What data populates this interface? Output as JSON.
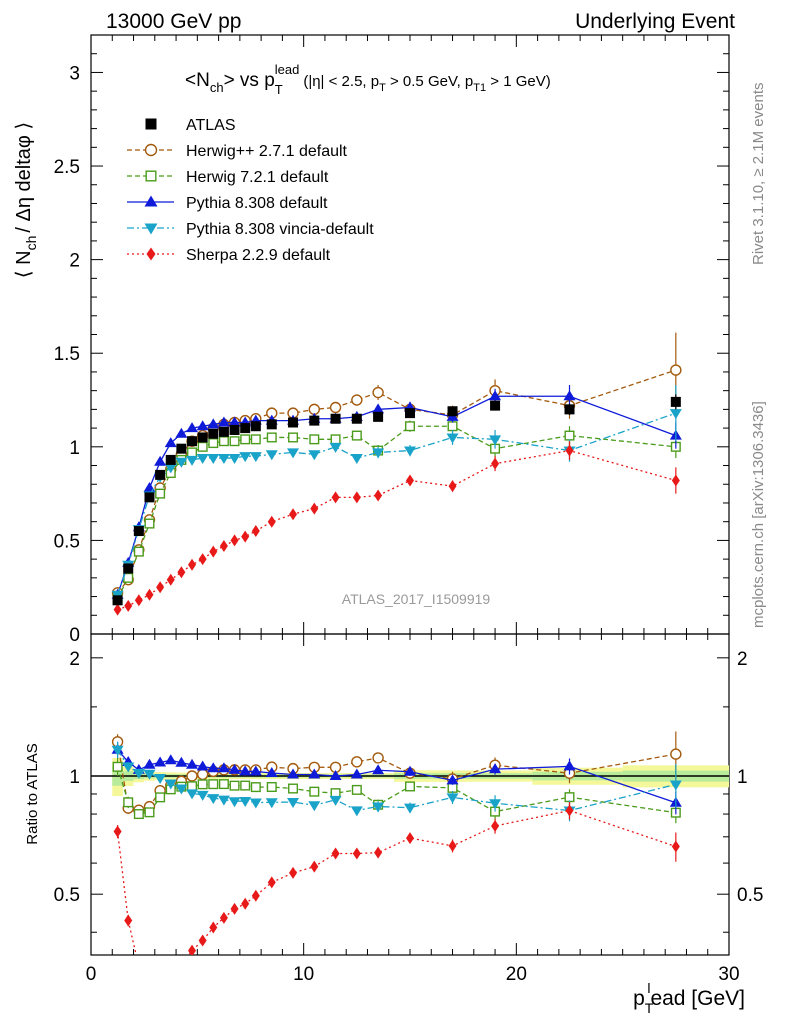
{
  "header": {
    "left": "13000 GeV pp",
    "right": "Underlying Event"
  },
  "side_labels": {
    "rivet": "Rivet 3.1.10, ≥ 2.1M events",
    "mcplots": "mcplots.cern.ch [arXiv:1306.3436]"
  },
  "chart_data": {
    "type": "line",
    "title_main": "<N",
    "title_main_sub": "ch",
    "title_vs": "> vs p",
    "title_vs_sup": "lead",
    "title_vs_sub": "T",
    "title_cuts": "(|η| < 2.5, p",
    "title_cuts_sub1": "T",
    "title_cuts_mid": " > 0.5 GeV, p",
    "title_cuts_sub2": "T1",
    "title_cuts_end": " > 1 GeV)",
    "watermark": "ATLAS_2017_I1509919",
    "ylabel_main": {
      "pre": "⟨ N",
      "sub": "ch",
      "post": "/ Δη deltaφ ⟩"
    },
    "ylabel_ratio": "Ratio to ATLAS",
    "xlabel": {
      "pre": "p",
      "sub": "T",
      "sup": "l",
      "post": "ead [GeV]"
    },
    "xlim": [
      0,
      30
    ],
    "ylim_main": [
      0,
      3.2
    ],
    "ylim_ratio": [
      0.35,
      2.3
    ],
    "xticks": [
      0,
      10,
      20,
      30
    ],
    "xtick_labels": [
      "0",
      "10",
      "20",
      "30"
    ],
    "yticks_main": [
      0,
      0.5,
      1,
      1.5,
      2,
      2.5,
      3
    ],
    "ytick_labels_main": [
      "0",
      "0.5",
      "1",
      "1.5",
      "2",
      "2.5",
      "3"
    ],
    "yticks_ratio": [
      0.5,
      1,
      2
    ],
    "ytick_labels_ratio": [
      "0.5",
      "1",
      "2"
    ],
    "x": [
      1.25,
      1.75,
      2.25,
      2.75,
      3.25,
      3.75,
      4.25,
      4.75,
      5.25,
      5.75,
      6.25,
      6.75,
      7.25,
      7.75,
      8.5,
      9.5,
      10.5,
      11.5,
      12.5,
      13.5,
      15.0,
      17.0,
      19.0,
      22.5,
      27.5
    ],
    "series": [
      {
        "name": "ATLAS",
        "color": "#000000",
        "marker": "square-filled",
        "line": "none",
        "values": [
          0.18,
          0.35,
          0.55,
          0.73,
          0.85,
          0.93,
          0.99,
          1.03,
          1.05,
          1.07,
          1.08,
          1.09,
          1.1,
          1.11,
          1.12,
          1.13,
          1.14,
          1.15,
          1.15,
          1.16,
          1.18,
          1.19,
          1.22,
          1.2,
          1.24
        ],
        "errors": [
          0.01,
          0.01,
          0.01,
          0.01,
          0.01,
          0.01,
          0.01,
          0.01,
          0.01,
          0.01,
          0.01,
          0.01,
          0.01,
          0.01,
          0.01,
          0.01,
          0.01,
          0.01,
          0.01,
          0.01,
          0.02,
          0.02,
          0.02,
          0.03,
          0.04
        ]
      },
      {
        "name": "Herwig++ 2.7.1 default",
        "color": "#a35a0e",
        "marker": "circle-open",
        "line": "dashed",
        "values": [
          0.22,
          0.29,
          0.45,
          0.61,
          0.78,
          0.88,
          0.96,
          1.03,
          1.06,
          1.1,
          1.12,
          1.13,
          1.14,
          1.15,
          1.18,
          1.18,
          1.2,
          1.21,
          1.25,
          1.29,
          1.2,
          1.17,
          1.3,
          1.22,
          1.41
        ],
        "errors": [
          0.01,
          0.01,
          0.01,
          0.01,
          0.01,
          0.01,
          0.01,
          0.01,
          0.01,
          0.01,
          0.01,
          0.01,
          0.01,
          0.01,
          0.01,
          0.02,
          0.02,
          0.02,
          0.03,
          0.04,
          0.04,
          0.05,
          0.06,
          0.07,
          0.2
        ]
      },
      {
        "name": "Herwig 7.2.1 default",
        "color": "#4b9b1b",
        "marker": "square-open",
        "line": "dashed",
        "values": [
          0.19,
          0.3,
          0.44,
          0.59,
          0.75,
          0.86,
          0.93,
          0.97,
          1.0,
          1.02,
          1.03,
          1.03,
          1.04,
          1.04,
          1.05,
          1.05,
          1.04,
          1.04,
          1.06,
          0.98,
          1.11,
          1.11,
          0.99,
          1.06,
          1.0
        ],
        "errors": [
          0.01,
          0.01,
          0.01,
          0.01,
          0.01,
          0.01,
          0.01,
          0.01,
          0.01,
          0.01,
          0.01,
          0.01,
          0.01,
          0.01,
          0.01,
          0.02,
          0.02,
          0.02,
          0.02,
          0.03,
          0.03,
          0.04,
          0.05,
          0.05,
          0.06
        ]
      },
      {
        "name": "Pythia 8.308 default",
        "color": "#0f1bd8",
        "marker": "triangle-up-filled",
        "line": "solid",
        "values": [
          0.21,
          0.38,
          0.57,
          0.78,
          0.92,
          1.02,
          1.07,
          1.1,
          1.11,
          1.12,
          1.13,
          1.13,
          1.13,
          1.14,
          1.14,
          1.14,
          1.15,
          1.15,
          1.16,
          1.2,
          1.21,
          1.16,
          1.27,
          1.27,
          1.06
        ],
        "errors": [
          0.01,
          0.01,
          0.01,
          0.01,
          0.01,
          0.01,
          0.01,
          0.01,
          0.01,
          0.01,
          0.01,
          0.01,
          0.01,
          0.01,
          0.01,
          0.01,
          0.01,
          0.02,
          0.02,
          0.02,
          0.03,
          0.03,
          0.04,
          0.06,
          0.07
        ]
      },
      {
        "name": "Pythia 8.308 vincia-default",
        "color": "#1aa3c9",
        "marker": "triangle-down-filled",
        "line": "dashdot",
        "values": [
          0.21,
          0.37,
          0.56,
          0.74,
          0.84,
          0.89,
          0.92,
          0.93,
          0.94,
          0.94,
          0.94,
          0.94,
          0.95,
          0.95,
          0.96,
          0.97,
          0.96,
          1.0,
          0.94,
          0.97,
          0.98,
          1.05,
          1.04,
          0.98,
          1.18
        ],
        "errors": [
          0.01,
          0.01,
          0.01,
          0.01,
          0.01,
          0.01,
          0.01,
          0.01,
          0.01,
          0.01,
          0.01,
          0.01,
          0.01,
          0.01,
          0.01,
          0.01,
          0.02,
          0.02,
          0.02,
          0.03,
          0.03,
          0.04,
          0.05,
          0.06,
          0.15
        ]
      },
      {
        "name": "Sherpa 2.2.9 default",
        "color": "#e81919",
        "marker": "diamond-filled",
        "line": "dotted",
        "values": [
          0.13,
          0.15,
          0.18,
          0.21,
          0.25,
          0.29,
          0.33,
          0.37,
          0.4,
          0.44,
          0.47,
          0.5,
          0.52,
          0.55,
          0.6,
          0.64,
          0.67,
          0.73,
          0.73,
          0.74,
          0.82,
          0.79,
          0.91,
          0.98,
          0.82
        ],
        "errors": [
          0.005,
          0.005,
          0.005,
          0.005,
          0.005,
          0.005,
          0.005,
          0.005,
          0.005,
          0.005,
          0.005,
          0.005,
          0.005,
          0.005,
          0.01,
          0.01,
          0.01,
          0.02,
          0.02,
          0.02,
          0.02,
          0.03,
          0.04,
          0.05,
          0.07
        ]
      }
    ]
  }
}
